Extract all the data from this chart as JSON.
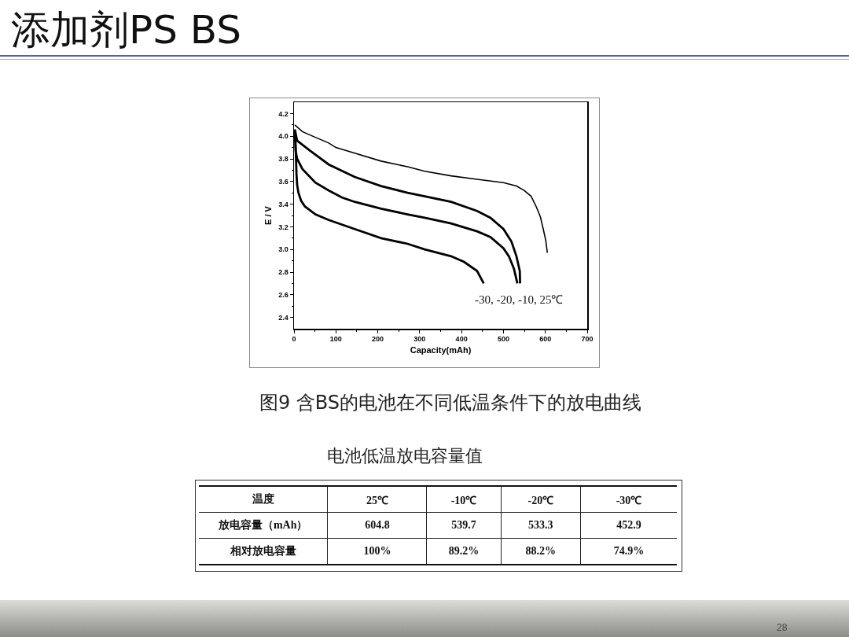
{
  "chart_data": [
    {
      "type": "line",
      "title": "添加剂PS BS",
      "xlabel": "Capacity(mAh)",
      "ylabel": "E / V",
      "xlim": [
        0,
        700
      ],
      "ylim": [
        2.3,
        4.3
      ],
      "xticks": [
        0,
        {
          "value": 50,
          "label": null
        },
        100,
        {
          "value": 150,
          "label": null
        },
        200,
        {
          "value": 250,
          "label": null
        },
        300,
        {
          "value": 350,
          "label": null
        },
        400,
        {
          "value": 450,
          "label": null
        },
        500,
        {
          "value": 550,
          "label": null
        },
        600,
        {
          "value": 650,
          "label": null
        },
        700
      ],
      "yticks": [
        2.4,
        {
          "value": 2.5,
          "label": null
        },
        2.6,
        {
          "value": 2.7,
          "label": null
        },
        2.8,
        {
          "value": 2.9,
          "label": null
        },
        {
          "value": 3,
          "label": "3.0"
        },
        {
          "value": 3.1,
          "label": null
        },
        3.2,
        {
          "value": 3.3,
          "label": null
        },
        3.4,
        {
          "value": 3.5,
          "label": null
        },
        3.6,
        {
          "value": 3.7,
          "label": null
        },
        3.8,
        {
          "value": 3.9,
          "label": null
        },
        {
          "value": 4,
          "label": "4.0"
        },
        {
          "value": 4.1,
          "label": null
        },
        4.2
      ],
      "series": [
        {
          "color": "#000000",
          "x": [
            2,
            20,
            51,
            83,
            100,
            145,
            208,
            271,
            312,
            375,
            437,
            500,
            531,
            550,
            566,
            578,
            588,
            595,
            601,
            604.8
          ],
          "values": [
            4.1,
            4.04,
            3.99,
            3.94,
            3.9,
            3.85,
            3.78,
            3.73,
            3.69,
            3.65,
            3.62,
            3.59,
            3.56,
            3.52,
            3.47,
            3.38,
            3.29,
            3.18,
            3.08,
            2.97
          ]
        },
        {
          "color": "#000000",
          "x": [
            2,
            7.5,
            39,
            83,
            145,
            208,
            271,
            312,
            375,
            437,
            469,
            500,
            519,
            531,
            539,
            539.7
          ],
          "values": [
            4.06,
            3.96,
            3.87,
            3.75,
            3.64,
            3.56,
            3.5,
            3.47,
            3.42,
            3.34,
            3.28,
            3.18,
            3.07,
            2.94,
            2.81,
            2.7
          ]
        },
        {
          "color": "#000000",
          "x": [
            2,
            4,
            7.5,
            20,
            51,
            83,
            114,
            145,
            208,
            271,
            312,
            375,
            437,
            469,
            500,
            513,
            525,
            533.3
          ],
          "values": [
            4.05,
            3.87,
            3.8,
            3.71,
            3.59,
            3.52,
            3.46,
            3.42,
            3.36,
            3.31,
            3.28,
            3.23,
            3.16,
            3.11,
            3.01,
            2.94,
            2.83,
            2.7
          ]
        },
        {
          "color": "#000000",
          "x": [
            3,
            6,
            7.5,
            10.6,
            17,
            26,
            51,
            83,
            145,
            208,
            271,
            312,
            375,
            406,
            437,
            452.9
          ],
          "values": [
            4.0,
            3.66,
            3.57,
            3.5,
            3.43,
            3.38,
            3.31,
            3.26,
            3.18,
            3.1,
            3.05,
            3.0,
            2.94,
            2.89,
            2.81,
            2.7
          ]
        }
      ],
      "annotations": [
        "-30, -20, -10, 25℃",
        "图9 含BS的电池在不同低温条件下的放电曲线"
      ]
    },
    {
      "type": "other",
      "title": "电池低温放电容量值",
      "xlabel": "温度",
      "categories": [
        "25℃",
        "-10℃",
        "-20℃",
        "-30℃"
      ],
      "data_labels": true,
      "series": [
        {
          "name": "放电容量（mAh）",
          "values": [
            604.8,
            539.7,
            533.3,
            452.9
          ]
        },
        {
          "name": "相对放电容量",
          "values": [
            100,
            89.2,
            88.2,
            74.9
          ],
          "value_labels": [
            "100%",
            "89.2%",
            "88.2%",
            "74.9%"
          ]
        }
      ],
      "annotations": [
        "28"
      ]
    }
  ]
}
